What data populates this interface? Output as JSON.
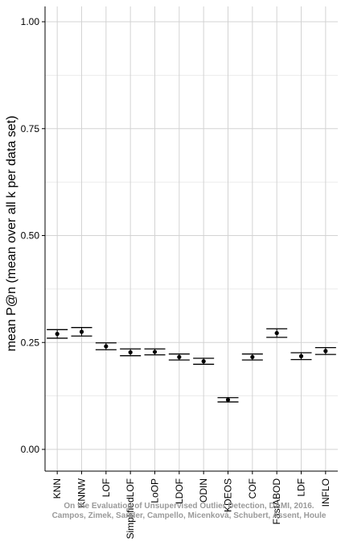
{
  "chart_data": {
    "type": "scatter",
    "title": "",
    "xlabel": "",
    "ylabel": "mean P@n (mean over all k per data set)",
    "ylim": [
      -0.05,
      1.05
    ],
    "yticks": [
      "0.00",
      "0.25",
      "0.50",
      "0.75",
      "1.00"
    ],
    "ytick_values": [
      0.0,
      0.25,
      0.5,
      0.75,
      1.0
    ],
    "grid": true,
    "categories": [
      "KNN",
      "KNNW",
      "LOF",
      "SimplifiedLOF",
      "LoOP",
      "LDOF",
      "ODIN",
      "KDEOS",
      "COF",
      "FastABOD",
      "LDF",
      "INFLO"
    ],
    "series": [
      {
        "mean": [
          0.27,
          0.275,
          0.241,
          0.227,
          0.228,
          0.216,
          0.206,
          0.116,
          0.216,
          0.272,
          0.218,
          0.23
        ],
        "lower": [
          0.26,
          0.265,
          0.233,
          0.219,
          0.221,
          0.209,
          0.199,
          0.111,
          0.209,
          0.262,
          0.21,
          0.222
        ],
        "upper": [
          0.28,
          0.285,
          0.249,
          0.235,
          0.235,
          0.223,
          0.213,
          0.121,
          0.223,
          0.282,
          0.226,
          0.238
        ]
      }
    ],
    "annotations": [
      "On the Evaluation of Unsupervised Outlier Detection, DAMI, 2016.",
      "Campos, Zimek, Sander, Campello, Micenková, Schubert, Assent, Houle"
    ],
    "colors": {
      "grid": "#d3d3d3",
      "axis": "#000000",
      "marks": "#000000",
      "watermark": "#9a9a9a"
    }
  }
}
